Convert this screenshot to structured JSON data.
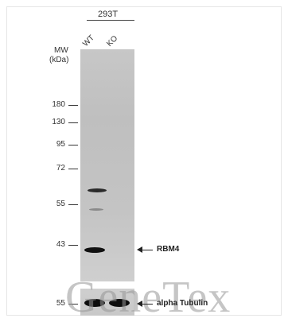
{
  "header": {
    "cell_line": "293T"
  },
  "lanes": [
    "WT",
    "KO"
  ],
  "mw": {
    "label_line1": "MW",
    "label_line2": "(kDa)"
  },
  "markers": [
    "180",
    "130",
    "95",
    "72",
    "55",
    "43",
    "55"
  ],
  "bands": {
    "target": "RBM4",
    "loading_control": "alpha Tubulin"
  },
  "watermark": "GeneTex"
}
